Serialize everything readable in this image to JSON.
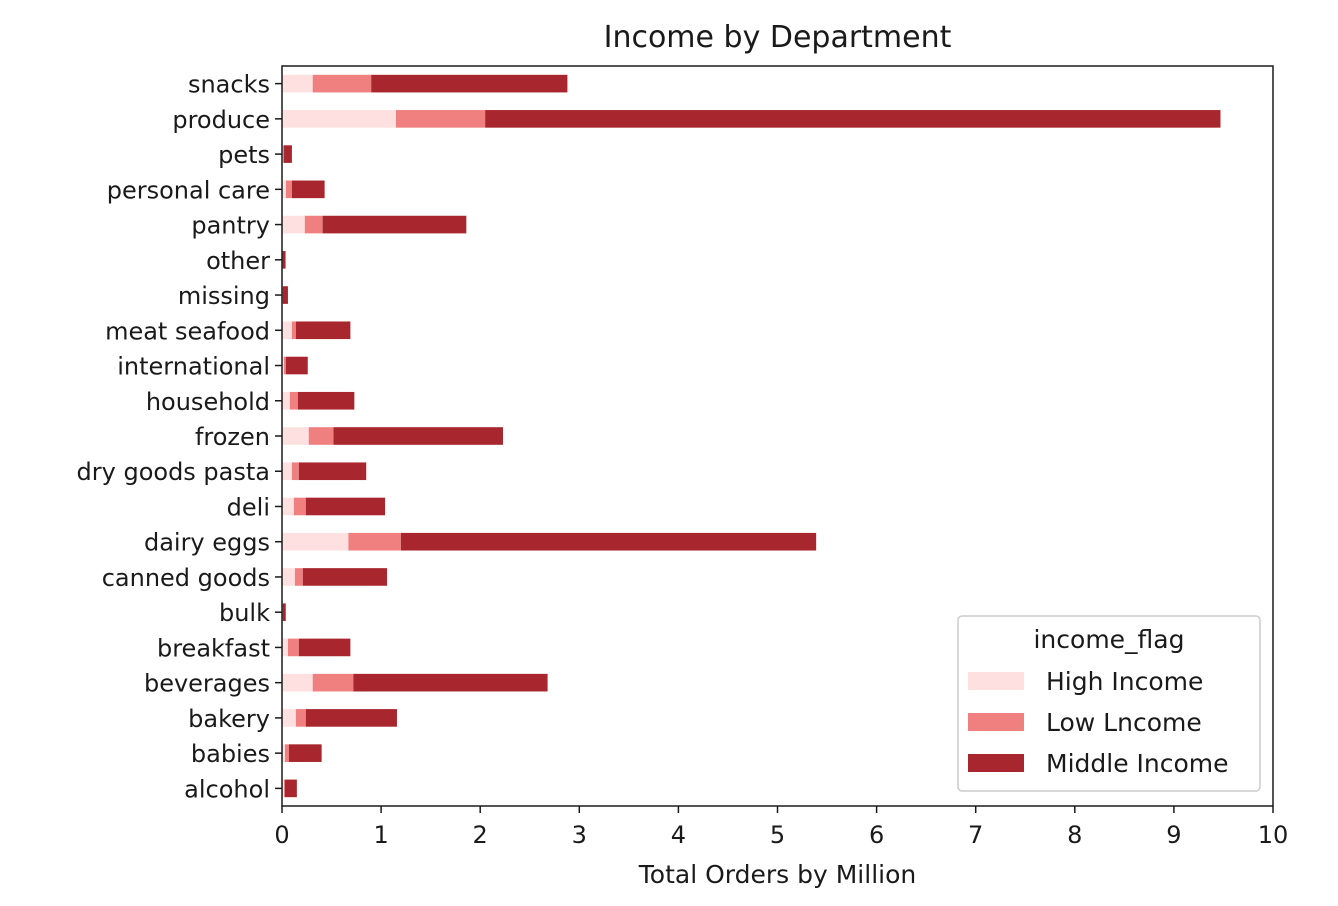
{
  "chart_data": {
    "type": "bar",
    "orientation": "horizontal",
    "stacked": true,
    "title": "Income by Department",
    "xlabel": "Total Orders by Million",
    "ylabel": "",
    "xlim": [
      0,
      10
    ],
    "xticks": [
      "0",
      "1",
      "2",
      "3",
      "4",
      "5",
      "6",
      "7",
      "8",
      "9",
      "10"
    ],
    "grid": false,
    "legend": {
      "title": "income_flag",
      "position": "lower-right"
    },
    "categories": [
      "alcohol",
      "babies",
      "bakery",
      "beverages",
      "breakfast",
      "bulk",
      "canned goods",
      "dairy eggs",
      "deli",
      "dry goods pasta",
      "frozen",
      "household",
      "international",
      "meat seafood",
      "missing",
      "other",
      "pantry",
      "personal care",
      "pets",
      "produce",
      "snacks"
    ],
    "series": [
      {
        "name": "High Income",
        "color": "#ffe0e0",
        "values": [
          0.02,
          0.03,
          0.14,
          0.31,
          0.06,
          0.004,
          0.13,
          0.67,
          0.12,
          0.1,
          0.27,
          0.08,
          0.02,
          0.1,
          0.005,
          0.003,
          0.23,
          0.04,
          0.01,
          1.15,
          0.31
        ]
      },
      {
        "name": "Low Lncome",
        "color": "#f08080",
        "values": [
          0.01,
          0.04,
          0.1,
          0.41,
          0.11,
          0.004,
          0.08,
          0.53,
          0.12,
          0.07,
          0.25,
          0.08,
          0.02,
          0.04,
          0.005,
          0.003,
          0.18,
          0.06,
          0.01,
          0.9,
          0.59
        ]
      },
      {
        "name": "Middle Income",
        "color": "#a8262d",
        "values": [
          0.12,
          0.33,
          0.92,
          1.96,
          0.52,
          0.03,
          0.85,
          4.19,
          0.8,
          0.68,
          1.71,
          0.57,
          0.22,
          0.55,
          0.05,
          0.03,
          1.45,
          0.33,
          0.08,
          7.42,
          1.98
        ]
      }
    ]
  }
}
